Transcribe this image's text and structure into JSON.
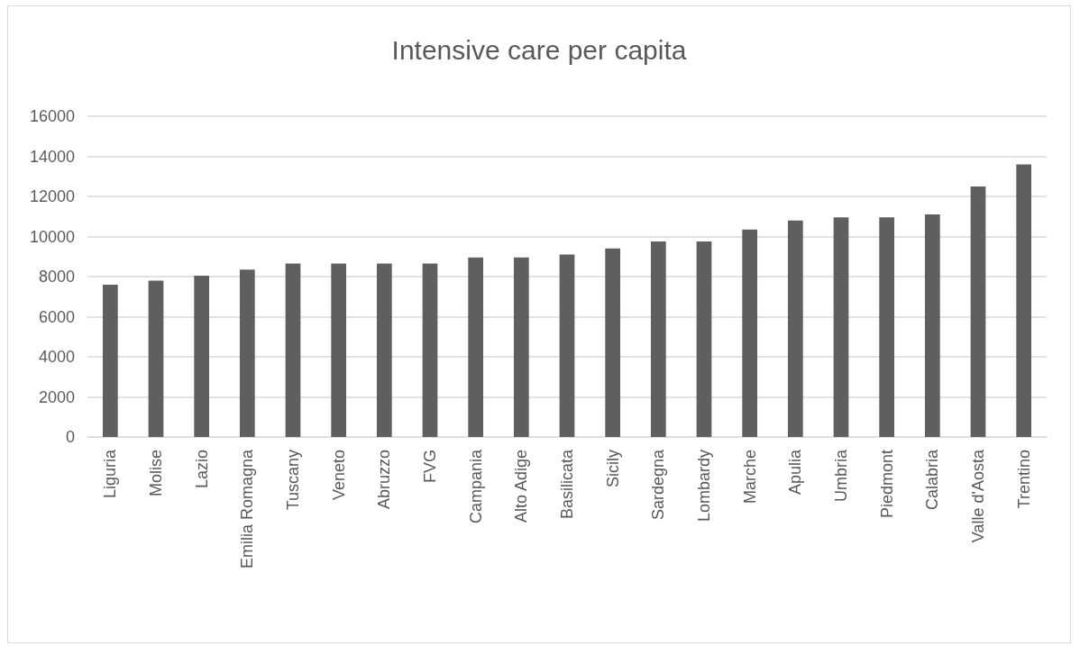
{
  "chart_data": {
    "type": "bar",
    "title": "Intensive care per capita",
    "categories": [
      "Liguria",
      "Molise",
      "Lazio",
      "Emilia Romagna",
      "Tuscany",
      "Veneto",
      "Abruzzo",
      "FVG",
      "Campania",
      "Alto Adige",
      "Basilicata",
      "Sicily",
      "Sardegna",
      "Lombardy",
      "Marche",
      "Apulia",
      "Umbria",
      "Piedmont",
      "Calabria",
      "Valle d'Aosta",
      "Trentino"
    ],
    "values": [
      7600,
      7800,
      8050,
      8350,
      8650,
      8650,
      8650,
      8650,
      8950,
      8950,
      9100,
      9400,
      9750,
      9750,
      10350,
      10800,
      10950,
      10950,
      11100,
      12500,
      13600
    ],
    "color": "#5f5f5f",
    "ylim": [
      0,
      16000
    ],
    "yticks": [
      0,
      2000,
      4000,
      6000,
      8000,
      10000,
      12000,
      14000,
      16000
    ],
    "grid": "y"
  }
}
